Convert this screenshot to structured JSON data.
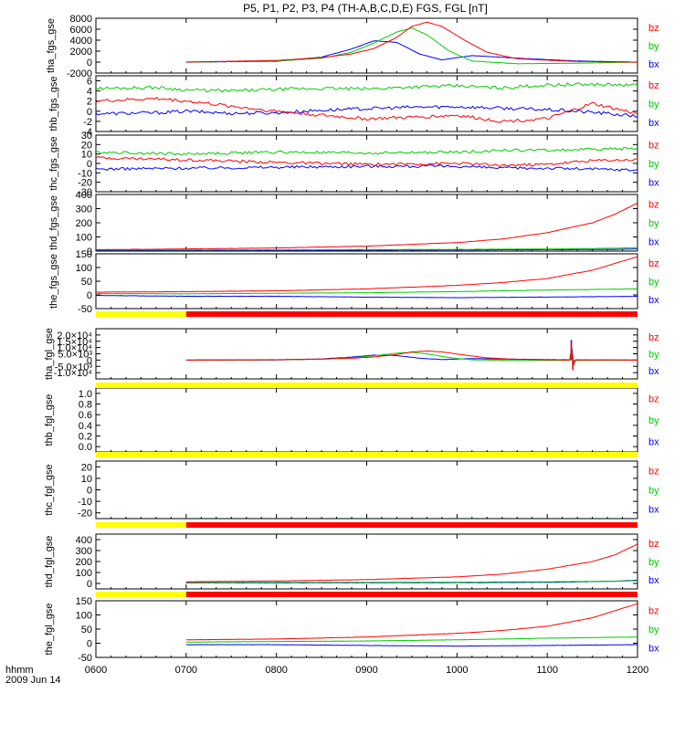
{
  "title": "P5, P1, P2, P3, P4 (TH-A,B,C,D,E) FGS, FGL [nT]",
  "footer": {
    "time_label": "hhmm",
    "date_label": "2009 Jun 14"
  },
  "colors": {
    "bx": "#0000ff",
    "by": "#00cc00",
    "bz": "#ff0000",
    "bar_yellow": "#ffff00",
    "bar_red": "#ff0000",
    "axis": "#000000"
  },
  "x_axis": {
    "ticks": [
      "0600",
      "0700",
      "0800",
      "0900",
      "1000",
      "1100",
      "1200"
    ],
    "range": [
      "06:00",
      "12:00"
    ]
  },
  "component_labels": [
    "bz",
    "by",
    "bx"
  ],
  "chart_data": [
    {
      "type": "line",
      "ylabel": "tha_fgs_gse",
      "ylim": [
        -2000,
        8000
      ],
      "yticks": [
        "8000",
        "6000",
        "4000",
        "2000",
        "0",
        "-2000"
      ],
      "start": "07:00",
      "series": [
        {
          "name": "bx",
          "t": [
            "07:00",
            "08:00",
            "08:30",
            "08:50",
            "09:05",
            "09:20",
            "09:35",
            "09:50",
            "10:10",
            "10:40",
            "11:20",
            "12:00"
          ],
          "y": [
            0,
            150,
            900,
            2400,
            3900,
            3600,
            1500,
            400,
            1200,
            700,
            200,
            0
          ]
        },
        {
          "name": "by",
          "t": [
            "07:00",
            "08:00",
            "08:30",
            "08:50",
            "09:05",
            "09:20",
            "09:30",
            "09:40",
            "09:55",
            "10:10",
            "10:40",
            "11:20",
            "12:00"
          ],
          "y": [
            0,
            200,
            700,
            1800,
            3500,
            5500,
            6200,
            5000,
            2000,
            200,
            -300,
            -200,
            0
          ]
        },
        {
          "name": "bz",
          "t": [
            "07:00",
            "08:00",
            "08:30",
            "08:50",
            "09:05",
            "09:20",
            "09:30",
            "09:40",
            "09:50",
            "10:05",
            "10:20",
            "10:40",
            "11:20",
            "12:00"
          ],
          "y": [
            0,
            300,
            800,
            1500,
            2500,
            4500,
            6500,
            7300,
            6500,
            4000,
            1800,
            600,
            100,
            0
          ]
        }
      ]
    },
    {
      "type": "line",
      "ylabel": "thb_fgs_gse",
      "ylim": [
        -4,
        7
      ],
      "yticks": [
        "6",
        "4",
        "2",
        "0",
        "-2",
        "-4"
      ],
      "start": "06:00",
      "series": [
        {
          "name": "bx",
          "t": [
            "06:00",
            "06:40",
            "07:00",
            "07:30",
            "08:00",
            "08:30",
            "09:00",
            "09:30",
            "10:00",
            "10:30",
            "11:00",
            "11:30",
            "12:00"
          ],
          "y": [
            -0.5,
            -0.3,
            0,
            -0.4,
            -0.3,
            0.2,
            0.5,
            0.8,
            0.9,
            0.6,
            0.3,
            -0.2,
            -1.0
          ]
        },
        {
          "name": "by",
          "t": [
            "06:00",
            "06:40",
            "07:00",
            "07:30",
            "08:00",
            "08:30",
            "09:00",
            "09:30",
            "10:00",
            "10:30",
            "11:00",
            "11:30",
            "12:00"
          ],
          "y": [
            4.5,
            4.7,
            4.2,
            4.0,
            4.3,
            4.5,
            4.4,
            4.8,
            5.0,
            4.6,
            5.2,
            5.3,
            5.1
          ]
        },
        {
          "name": "bz",
          "t": [
            "06:00",
            "06:40",
            "07:00",
            "07:30",
            "08:00",
            "08:30",
            "09:00",
            "09:30",
            "10:00",
            "10:30",
            "11:00",
            "11:30",
            "12:00"
          ],
          "y": [
            2.0,
            2.5,
            2.0,
            1.0,
            0.0,
            -0.8,
            -1.5,
            -1.2,
            -0.8,
            -2.0,
            -1.5,
            1.5,
            -0.5
          ]
        }
      ]
    },
    {
      "type": "line",
      "ylabel": "thc_fgs_gse",
      "ylim": [
        -30,
        30
      ],
      "yticks": [
        "30",
        "20",
        "10",
        "0",
        "-10",
        "-20",
        "-30"
      ],
      "start": "06:00",
      "series": [
        {
          "name": "bx",
          "t": [
            "06:00",
            "07:00",
            "08:00",
            "09:00",
            "10:00",
            "10:30",
            "11:00",
            "11:30",
            "12:00"
          ],
          "y": [
            -6,
            -5,
            -4,
            -3,
            -3,
            -5,
            -5,
            -6,
            -7
          ]
        },
        {
          "name": "by",
          "t": [
            "06:00",
            "07:00",
            "08:00",
            "09:00",
            "10:00",
            "10:30",
            "11:00",
            "11:30",
            "12:00"
          ],
          "y": [
            12,
            10,
            12,
            11,
            12,
            14,
            14,
            15,
            16
          ]
        },
        {
          "name": "bz",
          "t": [
            "06:00",
            "07:00",
            "08:00",
            "09:00",
            "10:00",
            "10:30",
            "11:00",
            "11:30",
            "12:00"
          ],
          "y": [
            6,
            4,
            1,
            -1,
            0,
            -2,
            -1,
            3,
            4
          ]
        }
      ]
    },
    {
      "type": "line",
      "ylabel": "thd_fgs_gse",
      "ylim": [
        0,
        400
      ],
      "yticks": [
        "400",
        "300",
        "200",
        "100",
        "0"
      ],
      "start": "06:00",
      "series": [
        {
          "name": "bx",
          "t": [
            "06:00",
            "08:00",
            "10:00",
            "11:00",
            "11:45",
            "12:00"
          ],
          "y": [
            5,
            5,
            8,
            10,
            12,
            15
          ]
        },
        {
          "name": "by",
          "t": [
            "06:00",
            "08:00",
            "10:00",
            "11:00",
            "11:45",
            "12:00"
          ],
          "y": [
            8,
            9,
            12,
            15,
            20,
            25
          ]
        },
        {
          "name": "bz",
          "t": [
            "06:00",
            "07:00",
            "08:00",
            "09:00",
            "10:00",
            "10:30",
            "11:00",
            "11:30",
            "11:45",
            "12:00"
          ],
          "y": [
            10,
            15,
            22,
            35,
            60,
            85,
            130,
            200,
            260,
            340
          ]
        }
      ]
    },
    {
      "type": "line",
      "ylabel": "the_fgs_gse",
      "ylim": [
        -50,
        150
      ],
      "yticks": [
        "150",
        "100",
        "50",
        "0",
        "-50"
      ],
      "start": "06:00",
      "series": [
        {
          "name": "bx",
          "t": [
            "06:00",
            "07:00",
            "08:00",
            "09:00",
            "10:00",
            "11:00",
            "12:00"
          ],
          "y": [
            -2,
            -5,
            -5,
            -8,
            -10,
            -8,
            -5
          ]
        },
        {
          "name": "by",
          "t": [
            "06:00",
            "07:00",
            "08:00",
            "09:00",
            "10:00",
            "11:00",
            "12:00"
          ],
          "y": [
            5,
            4,
            6,
            8,
            12,
            18,
            22
          ]
        },
        {
          "name": "bz",
          "t": [
            "06:00",
            "07:00",
            "08:00",
            "09:00",
            "10:00",
            "10:30",
            "11:00",
            "11:30",
            "12:00"
          ],
          "y": [
            10,
            12,
            15,
            22,
            35,
            45,
            60,
            90,
            140
          ]
        }
      ]
    },
    {
      "type": "line",
      "ylabel": "tha_fgl_gse",
      "ylim": [
        -15000,
        25000
      ],
      "yticks": [
        "2.0×10⁴",
        "1.5×10⁴",
        "1.0×10⁴",
        "5.0×10³",
        "0",
        "-5.0×10³",
        "-1.0×10⁴"
      ],
      "start": "07:00",
      "series": [
        {
          "name": "bx",
          "t": [
            "07:00",
            "08:00",
            "08:30",
            "08:50",
            "09:05",
            "09:20",
            "09:35",
            "09:50",
            "10:10",
            "10:40",
            "11:15",
            "11:16",
            "11:17",
            "11:18",
            "11:20",
            "12:00"
          ],
          "y": [
            0,
            150,
            900,
            2400,
            3900,
            3600,
            1500,
            400,
            1200,
            700,
            200,
            16000,
            -5000,
            200,
            200,
            0
          ]
        },
        {
          "name": "by",
          "t": [
            "07:00",
            "08:00",
            "08:30",
            "08:50",
            "09:05",
            "09:20",
            "09:30",
            "09:40",
            "09:55",
            "10:10",
            "10:40",
            "11:15",
            "11:16",
            "11:17",
            "11:18",
            "11:20",
            "12:00"
          ],
          "y": [
            0,
            200,
            700,
            1800,
            3500,
            5500,
            6200,
            5000,
            2000,
            200,
            -300,
            -200,
            12000,
            -6000,
            -200,
            -200,
            0
          ]
        },
        {
          "name": "bz",
          "t": [
            "07:00",
            "08:00",
            "08:30",
            "08:50",
            "09:05",
            "09:20",
            "09:30",
            "09:40",
            "09:50",
            "10:05",
            "10:20",
            "10:40",
            "11:15",
            "11:16",
            "11:17",
            "11:18",
            "11:20",
            "12:00"
          ],
          "y": [
            0,
            300,
            800,
            1500,
            2500,
            4500,
            6500,
            7300,
            6500,
            4000,
            1800,
            600,
            100,
            14000,
            -8000,
            100,
            100,
            0
          ]
        }
      ]
    },
    {
      "type": "line",
      "ylabel": "thb_fgl_gse",
      "ylim": [
        -0.1,
        1.1
      ],
      "yticks": [
        "1.0",
        "0.8",
        "0.6",
        "0.4",
        "0.2",
        "0.0"
      ],
      "start": "06:00",
      "series": []
    },
    {
      "type": "line",
      "ylabel": "thc_fgl_gse",
      "ylim": [
        -25,
        25
      ],
      "yticks": [
        "20",
        "10",
        "0",
        "-10",
        "-20"
      ],
      "start": "06:00",
      "series": []
    },
    {
      "type": "line",
      "ylabel": "thd_fgl_gse",
      "ylim": [
        -50,
        450
      ],
      "yticks": [
        "400",
        "300",
        "200",
        "100",
        "0"
      ],
      "start": "07:00",
      "series": [
        {
          "name": "bx",
          "t": [
            "07:00",
            "08:00",
            "09:00",
            "10:00",
            "11:00",
            "11:45",
            "12:00"
          ],
          "y": [
            5,
            5,
            6,
            8,
            10,
            20,
            30
          ]
        },
        {
          "name": "by",
          "t": [
            "07:00",
            "08:00",
            "09:00",
            "10:00",
            "11:00",
            "11:45",
            "12:00"
          ],
          "y": [
            8,
            9,
            10,
            12,
            15,
            20,
            25
          ]
        },
        {
          "name": "bz",
          "t": [
            "07:00",
            "08:00",
            "09:00",
            "10:00",
            "10:30",
            "11:00",
            "11:30",
            "11:45",
            "12:00"
          ],
          "y": [
            15,
            22,
            35,
            60,
            85,
            130,
            200,
            260,
            360
          ]
        }
      ]
    },
    {
      "type": "line",
      "ylabel": "the_fgl_gse",
      "ylim": [
        -50,
        150
      ],
      "yticks": [
        "150",
        "100",
        "50",
        "0",
        "-50"
      ],
      "start": "07:00",
      "series": [
        {
          "name": "bx",
          "t": [
            "07:00",
            "08:00",
            "09:00",
            "10:00",
            "11:00",
            "12:00"
          ],
          "y": [
            -5,
            -5,
            -8,
            -10,
            -8,
            -5
          ]
        },
        {
          "name": "by",
          "t": [
            "07:00",
            "08:00",
            "09:00",
            "10:00",
            "11:00",
            "12:00"
          ],
          "y": [
            4,
            6,
            8,
            12,
            18,
            22
          ]
        },
        {
          "name": "bz",
          "t": [
            "07:00",
            "08:00",
            "09:00",
            "10:00",
            "10:30",
            "11:00",
            "11:30",
            "12:00"
          ],
          "y": [
            12,
            15,
            22,
            35,
            45,
            60,
            90,
            140
          ]
        }
      ]
    }
  ],
  "status_bars": [
    {
      "after_panel": 4,
      "segments": [
        {
          "color": "yellow",
          "from": "06:00",
          "to": "07:00"
        },
        {
          "color": "red",
          "from": "07:00",
          "to": "12:00"
        }
      ]
    },
    {
      "after_panel": 5,
      "segments": [
        {
          "color": "yellow",
          "from": "06:00",
          "to": "12:00"
        }
      ]
    },
    {
      "after_panel": 6,
      "segments": [
        {
          "color": "yellow",
          "from": "06:00",
          "to": "12:00"
        }
      ]
    },
    {
      "after_panel": 7,
      "segments": [
        {
          "color": "yellow",
          "from": "06:00",
          "to": "07:00"
        },
        {
          "color": "red",
          "from": "07:00",
          "to": "12:00"
        }
      ]
    },
    {
      "after_panel": 8,
      "segments": [
        {
          "color": "yellow",
          "from": "06:00",
          "to": "07:00"
        },
        {
          "color": "red",
          "from": "07:00",
          "to": "12:00"
        }
      ]
    }
  ]
}
